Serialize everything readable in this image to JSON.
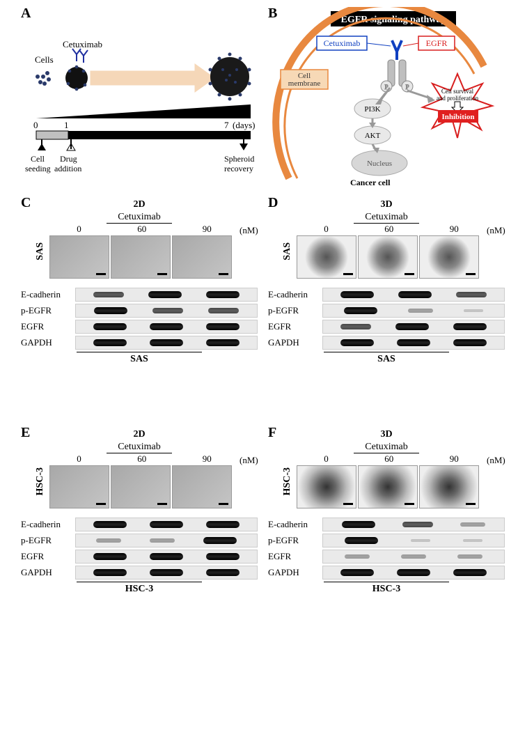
{
  "panels": {
    "A": "A",
    "B": "B",
    "C": "C",
    "D": "D",
    "E": "E",
    "F": "F"
  },
  "A": {
    "cells_label": "Cells",
    "cetuximab_label": "Cetuximab",
    "days_unit": "(days)",
    "day0": "0",
    "day1": "1",
    "day7": "7",
    "cell_seeding": "Cell\nseeding",
    "drug_addition": "Drug\naddition",
    "spheroid_recovery": "Spheroid\nrecovery",
    "timeline_color": "#000000",
    "bar_gray": "#bfbfbf"
  },
  "B": {
    "title": "EGFR signaling pathway",
    "cetuximab": "Cetuximab",
    "egfr": "EGFR",
    "cell_membrane": "Cell\nmembrane",
    "pi3k": "PI3K",
    "akt": "AKT",
    "nucleus": "Nucleus",
    "cancer_cell": "Cancer cell",
    "survival": "Cell survival\nand proliferation",
    "inhibition": "Inhibition",
    "P": "P",
    "colors": {
      "membrane": "#e8883f",
      "membrane_box": "#f7d9b6",
      "cetux_box_border": "#1040c0",
      "egfr_red": "#d81e1e",
      "burst_fill": "#ffffff",
      "burst_stroke": "#d81e1e",
      "inhibition_fill": "#e02020",
      "nucleus_fill": "#d7d7d7",
      "node_fill": "#e9e9e9",
      "title_bg": "#000000"
    }
  },
  "common": {
    "cetuximab": "Cetuximab",
    "doses": [
      "0",
      "60",
      "90"
    ],
    "unit": "(nM)",
    "blot_labels": [
      "E-cadherin",
      "p-EGFR",
      "EGFR",
      "GAPDH"
    ],
    "sas": "SAS",
    "hsc3": "HSC-3",
    "d2": "2D",
    "d3": "3D"
  },
  "C": {
    "bands": {
      "E-cadherin": [
        "med",
        "strong",
        "strong"
      ],
      "p-EGFR": [
        "strong",
        "med",
        "med"
      ],
      "EGFR": [
        "strong",
        "strong",
        "strong"
      ],
      "GAPDH": [
        "strong",
        "strong",
        "strong"
      ]
    }
  },
  "D": {
    "bands": {
      "E-cadherin": [
        "strong",
        "strong",
        "med"
      ],
      "p-EGFR": [
        "strong",
        "weak",
        "vweak"
      ],
      "EGFR": [
        "med",
        "strong",
        "strong"
      ],
      "GAPDH": [
        "strong",
        "strong",
        "strong"
      ]
    }
  },
  "E": {
    "bands": {
      "E-cadherin": [
        "strong",
        "strong",
        "strong"
      ],
      "p-EGFR": [
        "weak",
        "weak",
        "strong"
      ],
      "EGFR": [
        "strong",
        "strong",
        "strong"
      ],
      "GAPDH": [
        "strong",
        "strong",
        "strong"
      ]
    }
  },
  "F": {
    "bands": {
      "E-cadherin": [
        "strong",
        "med",
        "weak"
      ],
      "p-EGFR": [
        "strong",
        "vweak",
        "vweak"
      ],
      "EGFR": [
        "weak",
        "weak",
        "weak"
      ],
      "GAPDH": [
        "strong",
        "strong",
        "strong"
      ]
    }
  }
}
